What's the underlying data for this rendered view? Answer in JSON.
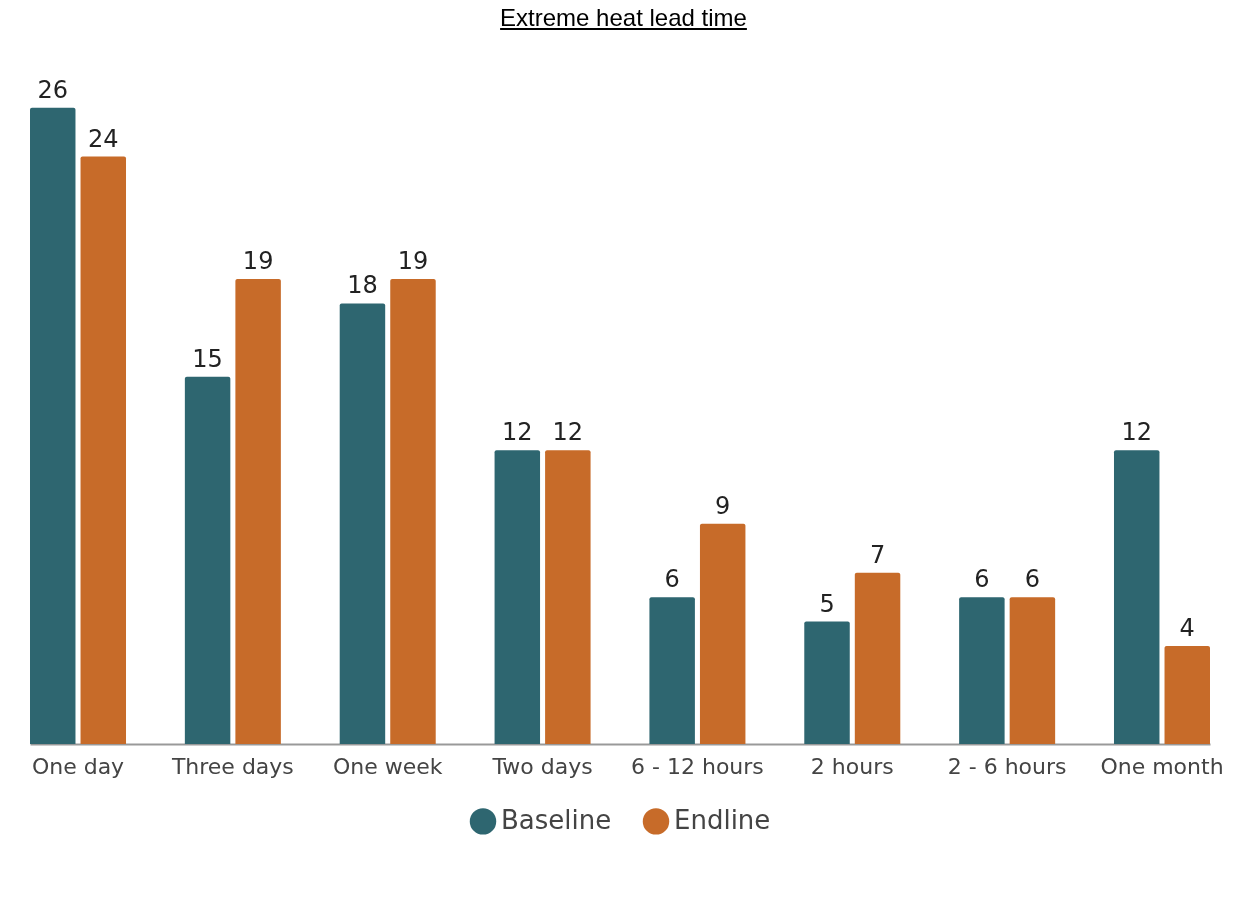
{
  "chart_data": {
    "type": "bar",
    "title": "Extreme heat lead time",
    "categories": [
      "One day",
      "Three days",
      "One week",
      "Two days",
      "6 - 12 hours",
      "2 hours",
      "2 - 6 hours",
      "One month"
    ],
    "series": [
      {
        "name": "Baseline",
        "color": "#2e6670",
        "values": [
          26,
          15,
          18,
          12,
          6,
          5,
          6,
          12
        ]
      },
      {
        "name": "Endline",
        "color": "#c76b29",
        "values": [
          24,
          19,
          19,
          12,
          9,
          7,
          6,
          4
        ]
      }
    ],
    "data_labels": true,
    "legend": "bottom"
  }
}
